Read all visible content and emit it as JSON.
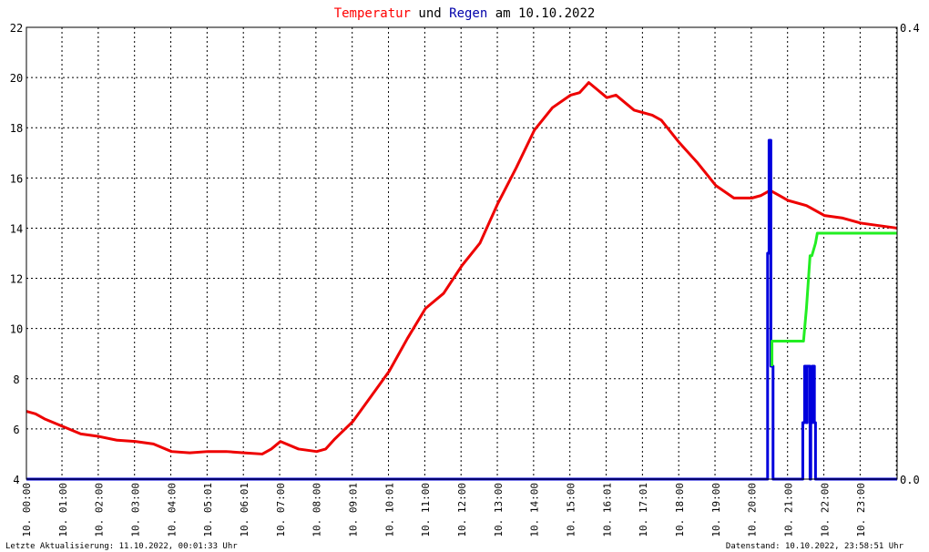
{
  "title": {
    "part1": "Temperatur",
    "part2": " und ",
    "part3": "Regen",
    "part4": " am 10.10.2022",
    "color1": "#ff0000",
    "color3": "#0000aa",
    "color_text": "#000000"
  },
  "footer": {
    "left": "Letzte Aktualisierung: 11.10.2022, 00:01:33 Uhr",
    "right": "Datenstand: 10.10.2022, 23:58:51 Uhr"
  },
  "chart_data": {
    "type": "line",
    "grid": true,
    "y_left": {
      "min": 4,
      "max": 22,
      "ticks": [
        "4",
        "6",
        "8",
        "10",
        "12",
        "14",
        "16",
        "18",
        "20",
        "22"
      ]
    },
    "y_right": {
      "min": 0.0,
      "max": 0.4,
      "ticks": [
        "0.0",
        "0.4"
      ]
    },
    "x_range_hours": [
      0,
      24
    ],
    "x_tick_labels": [
      "10. 00:00",
      "10. 01:00",
      "10. 02:00",
      "10. 03:00",
      "10. 04:00",
      "10. 05:01",
      "10. 06:01",
      "10. 07:00",
      "10. 08:00",
      "10. 09:01",
      "10. 10:01",
      "10. 11:00",
      "10. 12:00",
      "10. 13:00",
      "10. 14:00",
      "10. 15:00",
      "10. 16:01",
      "10. 17:01",
      "10. 18:00",
      "10. 19:00",
      "10. 20:00",
      "10. 21:00",
      "10. 22:00",
      "10. 23:00"
    ],
    "series": [
      {
        "color": "#ee0000",
        "axis": "left",
        "x": [
          0.0,
          0.25,
          0.5,
          1.0,
          1.5,
          2.0,
          2.5,
          3.0,
          3.5,
          4.0,
          4.5,
          5.0,
          5.5,
          6.0,
          6.5,
          6.75,
          7.0,
          7.5,
          8.0,
          8.25,
          8.5,
          9.0,
          9.5,
          10.0,
          10.5,
          11.0,
          11.5,
          12.0,
          12.5,
          13.0,
          13.5,
          14.0,
          14.5,
          15.0,
          15.25,
          15.5,
          15.75,
          16.0,
          16.25,
          16.5,
          16.75,
          17.0,
          17.25,
          17.5,
          18.0,
          18.5,
          19.0,
          19.5,
          20.0,
          20.25,
          20.5,
          20.75,
          21.0,
          21.5,
          22.0,
          22.5,
          23.0,
          23.5,
          24.0
        ],
        "y": [
          6.7,
          6.6,
          6.4,
          6.1,
          5.8,
          5.7,
          5.55,
          5.5,
          5.4,
          5.1,
          5.05,
          5.1,
          5.1,
          5.05,
          5.0,
          5.2,
          5.5,
          5.2,
          5.1,
          5.2,
          5.6,
          6.3,
          7.3,
          8.3,
          9.6,
          10.8,
          11.4,
          12.5,
          13.4,
          15.0,
          16.4,
          17.9,
          18.8,
          19.3,
          19.4,
          19.8,
          19.5,
          19.2,
          19.3,
          19.0,
          18.7,
          18.6,
          18.5,
          18.3,
          17.4,
          16.6,
          15.7,
          15.2,
          15.2,
          15.3,
          15.5,
          15.3,
          15.1,
          14.9,
          14.5,
          14.4,
          14.2,
          14.1,
          14.0
        ]
      },
      {
        "color": "#0000dd",
        "axis": "right",
        "x": [
          0,
          20.43,
          20.43,
          20.47,
          20.47,
          20.52,
          20.52,
          20.58,
          20.58,
          21.4,
          21.4,
          21.45,
          21.45,
          21.5,
          21.5,
          21.52,
          21.52,
          21.6,
          21.6,
          21.62,
          21.62,
          21.66,
          21.66,
          21.72,
          21.72,
          21.75,
          21.75,
          24
        ],
        "y": [
          0,
          0,
          0.2,
          0.2,
          0.3,
          0.3,
          0.1,
          0.1,
          0,
          0,
          0.05,
          0.05,
          0.1,
          0.1,
          0.05,
          0.05,
          0.1,
          0.1,
          0,
          0,
          0.05,
          0.05,
          0.1,
          0.1,
          0.05,
          0.05,
          0,
          0
        ]
      },
      {
        "color": "#22ee22",
        "axis": "left",
        "x": [
          20.55,
          20.55,
          20.6,
          21.42,
          21.5,
          21.6,
          21.65,
          21.75,
          21.8,
          24.0
        ],
        "y": [
          8.5,
          9.5,
          9.5,
          9.5,
          10.8,
          12.9,
          12.9,
          13.4,
          13.8,
          13.8
        ]
      }
    ]
  }
}
